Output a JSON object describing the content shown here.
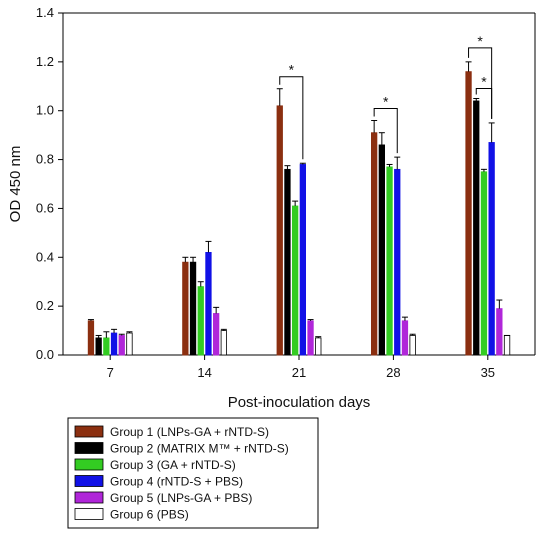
{
  "chart_data": {
    "type": "bar",
    "xlabel": "Post-inoculation days",
    "ylabel": "OD 450 nm",
    "ylim": [
      0.0,
      1.4
    ],
    "yticks": [
      "0.0",
      "0.2",
      "0.4",
      "0.6",
      "0.8",
      "1.0",
      "1.2",
      "1.4"
    ],
    "categories": [
      "7",
      "14",
      "21",
      "28",
      "35"
    ],
    "grid": false,
    "legend_position": "bottom-left, below the plot",
    "series": [
      {
        "name": "Group 1 (LNPs-GA + rNTD-S)",
        "color": "#8B2F10",
        "values": [
          0.14,
          0.38,
          1.02,
          0.91,
          1.16
        ],
        "errors": [
          0.005,
          0.02,
          0.07,
          0.05,
          0.04
        ]
      },
      {
        "name": "Group 2 (MATRIX M™ + rNTD-S)",
        "color": "#000000",
        "values": [
          0.07,
          0.38,
          0.76,
          0.86,
          1.04
        ],
        "errors": [
          0.01,
          0.02,
          0.015,
          0.05,
          0.01
        ]
      },
      {
        "name": "Group 3 (GA + rNTD-S)",
        "color": "#33CC22",
        "values": [
          0.07,
          0.28,
          0.61,
          0.77,
          0.75
        ],
        "errors": [
          0.025,
          0.02,
          0.02,
          0.01,
          0.01
        ]
      },
      {
        "name": "Group 4 (rNTD-S + PBS)",
        "color": "#1111E6",
        "values": [
          0.09,
          0.42,
          0.78,
          0.76,
          0.87
        ],
        "errors": [
          0.015,
          0.045,
          0.005,
          0.05,
          0.08
        ]
      },
      {
        "name": "Group 5 (LNPs-GA + PBS)",
        "color": "#B026D9",
        "values": [
          0.08,
          0.17,
          0.14,
          0.14,
          0.19
        ],
        "errors": [
          0.005,
          0.025,
          0.005,
          0.015,
          0.035
        ]
      },
      {
        "name": "Group 6 (PBS)",
        "color": "#ffffff",
        "values": [
          0.09,
          0.1,
          0.07,
          0.08,
          0.08
        ],
        "errors": [
          0.005,
          0.005,
          0.005,
          0.005,
          0.0
        ]
      }
    ],
    "significance": [
      {
        "label": "*",
        "category": "21",
        "from_series": 0,
        "to_series": 3
      },
      {
        "label": "*",
        "category": "28",
        "from_series": 0,
        "to_series": 3
      },
      {
        "label": "*",
        "category": "35",
        "from_series": 0,
        "to_series": 3
      },
      {
        "label": "*",
        "category": "35",
        "from_series": 1,
        "to_series": 3
      }
    ]
  }
}
